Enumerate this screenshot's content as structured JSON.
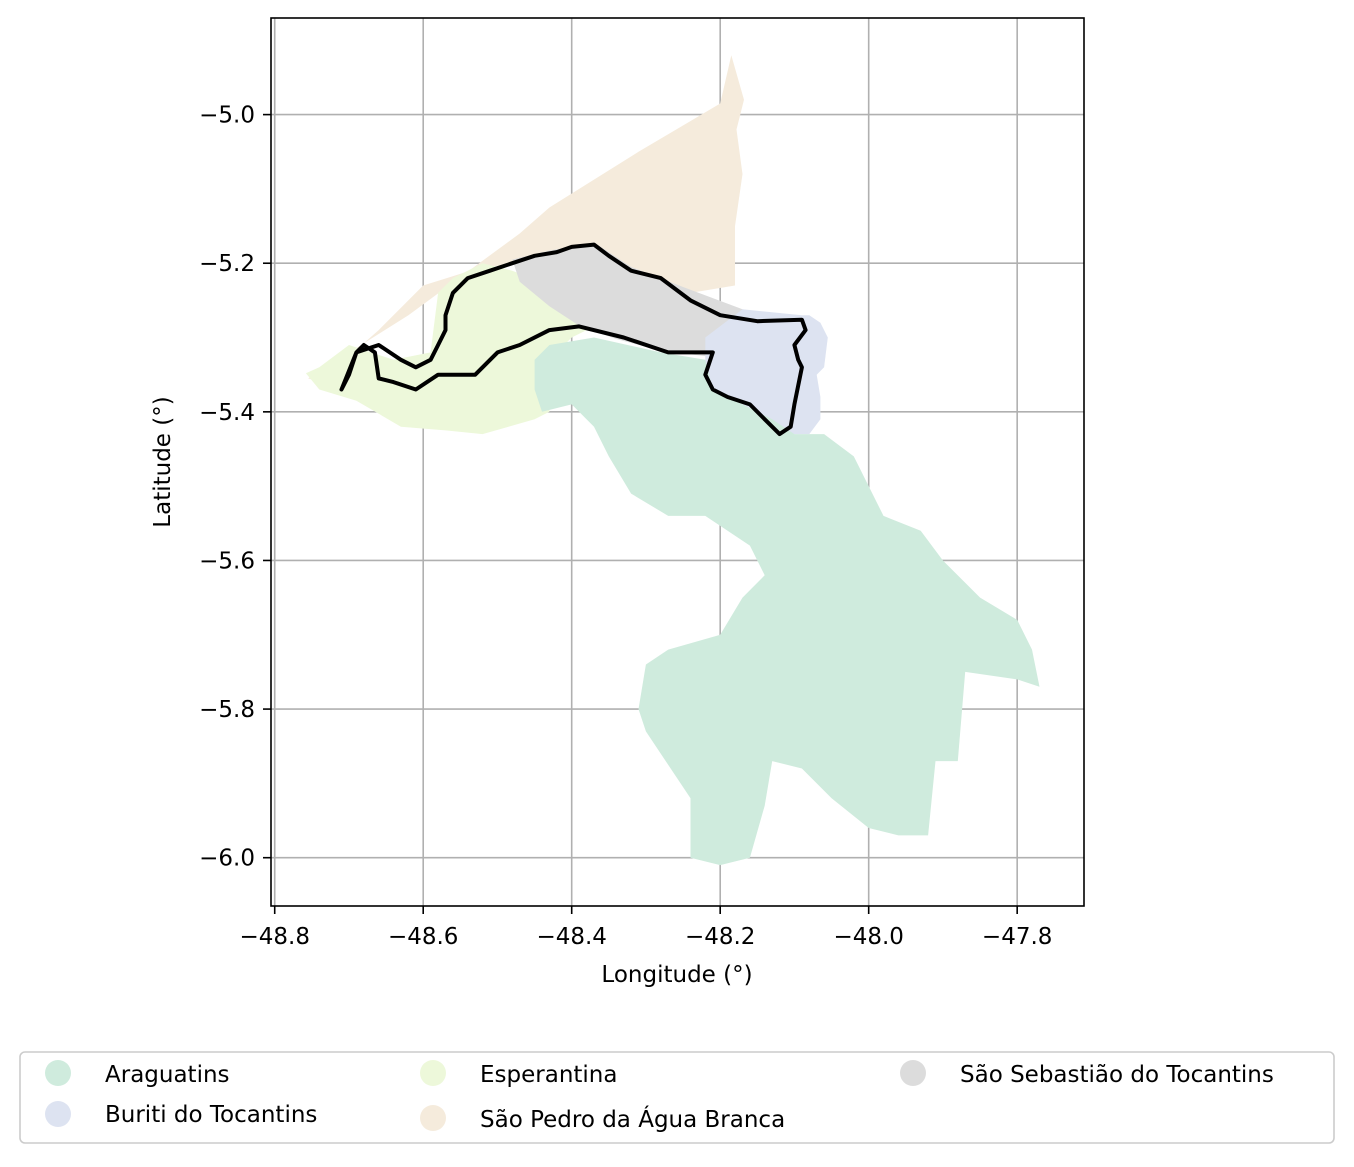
{
  "chart_data": {
    "type": "map",
    "xlabel": "Longitude (°)",
    "ylabel": "Latitude (°)",
    "xlim": [
      -48.805,
      -47.71
    ],
    "ylim": [
      -6.065,
      -4.87
    ],
    "x_ticks": [
      -48.8,
      -48.6,
      -48.4,
      -48.2,
      -48.0,
      -47.8
    ],
    "x_tick_labels": [
      "−48.8",
      "−48.6",
      "−48.4",
      "−48.2",
      "−48.0",
      "−47.8"
    ],
    "y_ticks": [
      -5.0,
      -5.2,
      -5.4,
      -5.6,
      -5.8,
      -6.0
    ],
    "y_tick_labels": [
      "−5.0",
      "−5.2",
      "−5.4",
      "−5.6",
      "−5.8",
      "−6.0"
    ],
    "grid": true,
    "legend_placement": "bottom-center, outside plot",
    "regions": [
      {
        "name": "São Pedro da Água Branca",
        "color": "#f5ebdc",
        "polygon": [
          [
            -48.755,
            -5.355
          ],
          [
            -48.62,
            -5.27
          ],
          [
            -48.47,
            -5.16
          ],
          [
            -48.43,
            -5.125
          ],
          [
            -48.31,
            -5.05
          ],
          [
            -48.2,
            -4.985
          ],
          [
            -48.185,
            -4.92
          ],
          [
            -48.168,
            -4.98
          ],
          [
            -48.178,
            -5.02
          ],
          [
            -48.17,
            -5.08
          ],
          [
            -48.18,
            -5.15
          ],
          [
            -48.18,
            -5.23
          ],
          [
            -48.24,
            -5.24
          ],
          [
            -48.35,
            -5.22
          ],
          [
            -48.45,
            -5.2
          ],
          [
            -48.52,
            -5.205
          ],
          [
            -48.6,
            -5.23
          ],
          [
            -48.66,
            -5.29
          ],
          [
            -48.74,
            -5.36
          ]
        ]
      },
      {
        "name": "Esperantina",
        "color": "#edf8da",
        "polygon": [
          [
            -48.758,
            -5.348
          ],
          [
            -48.74,
            -5.37
          ],
          [
            -48.69,
            -5.385
          ],
          [
            -48.63,
            -5.42
          ],
          [
            -48.57,
            -5.425
          ],
          [
            -48.52,
            -5.43
          ],
          [
            -48.45,
            -5.41
          ],
          [
            -48.43,
            -5.4
          ],
          [
            -48.43,
            -5.33
          ],
          [
            -48.4,
            -5.3
          ],
          [
            -48.36,
            -5.28
          ],
          [
            -48.43,
            -5.23
          ],
          [
            -48.48,
            -5.21
          ],
          [
            -48.52,
            -5.2
          ],
          [
            -48.56,
            -5.22
          ],
          [
            -48.58,
            -5.24
          ],
          [
            -48.59,
            -5.32
          ],
          [
            -48.64,
            -5.33
          ],
          [
            -48.7,
            -5.31
          ],
          [
            -48.74,
            -5.34
          ]
        ]
      },
      {
        "name": "São Sebastião do Tocantins",
        "color": "#dcdcdc",
        "polygon": [
          [
            -48.48,
            -5.195
          ],
          [
            -48.43,
            -5.183
          ],
          [
            -48.37,
            -5.172
          ],
          [
            -48.32,
            -5.205
          ],
          [
            -48.25,
            -5.232
          ],
          [
            -48.17,
            -5.262
          ],
          [
            -48.09,
            -5.278
          ],
          [
            -48.13,
            -5.285
          ],
          [
            -48.18,
            -5.297
          ],
          [
            -48.22,
            -5.325
          ],
          [
            -48.28,
            -5.318
          ],
          [
            -48.34,
            -5.302
          ],
          [
            -48.39,
            -5.284
          ],
          [
            -48.43,
            -5.258
          ],
          [
            -48.47,
            -5.225
          ]
        ]
      },
      {
        "name": "Buriti do Tocantins",
        "color": "#dde3f1",
        "polygon": [
          [
            -48.22,
            -5.3
          ],
          [
            -48.17,
            -5.262
          ],
          [
            -48.09,
            -5.27
          ],
          [
            -48.08,
            -5.27
          ],
          [
            -48.065,
            -5.28
          ],
          [
            -48.055,
            -5.3
          ],
          [
            -48.06,
            -5.34
          ],
          [
            -48.07,
            -5.35
          ],
          [
            -48.065,
            -5.38
          ],
          [
            -48.065,
            -5.41
          ],
          [
            -48.08,
            -5.43
          ],
          [
            -48.1,
            -5.43
          ],
          [
            -48.14,
            -5.42
          ],
          [
            -48.17,
            -5.39
          ],
          [
            -48.21,
            -5.38
          ],
          [
            -48.22,
            -5.34
          ]
        ]
      },
      {
        "name": "Araguatins",
        "color": "#cfebdd",
        "polygon": [
          [
            -48.45,
            -5.33
          ],
          [
            -48.43,
            -5.31
          ],
          [
            -48.37,
            -5.3
          ],
          [
            -48.28,
            -5.32
          ],
          [
            -48.22,
            -5.33
          ],
          [
            -48.21,
            -5.37
          ],
          [
            -48.17,
            -5.39
          ],
          [
            -48.13,
            -5.41
          ],
          [
            -48.1,
            -5.43
          ],
          [
            -48.06,
            -5.43
          ],
          [
            -48.02,
            -5.46
          ],
          [
            -48.0,
            -5.5
          ],
          [
            -47.98,
            -5.54
          ],
          [
            -47.93,
            -5.56
          ],
          [
            -47.9,
            -5.6
          ],
          [
            -47.85,
            -5.65
          ],
          [
            -47.8,
            -5.68
          ],
          [
            -47.78,
            -5.72
          ],
          [
            -47.77,
            -5.77
          ],
          [
            -47.8,
            -5.76
          ],
          [
            -47.87,
            -5.75
          ],
          [
            -47.88,
            -5.87
          ],
          [
            -47.91,
            -5.87
          ],
          [
            -47.92,
            -5.97
          ],
          [
            -47.96,
            -5.97
          ],
          [
            -48.0,
            -5.96
          ],
          [
            -48.05,
            -5.92
          ],
          [
            -48.09,
            -5.88
          ],
          [
            -48.13,
            -5.87
          ],
          [
            -48.14,
            -5.93
          ],
          [
            -48.16,
            -6.0
          ],
          [
            -48.2,
            -6.01
          ],
          [
            -48.24,
            -6.0
          ],
          [
            -48.24,
            -5.92
          ],
          [
            -48.28,
            -5.86
          ],
          [
            -48.3,
            -5.83
          ],
          [
            -48.31,
            -5.8
          ],
          [
            -48.3,
            -5.74
          ],
          [
            -48.27,
            -5.72
          ],
          [
            -48.2,
            -5.7
          ],
          [
            -48.17,
            -5.65
          ],
          [
            -48.14,
            -5.62
          ],
          [
            -48.16,
            -5.58
          ],
          [
            -48.22,
            -5.54
          ],
          [
            -48.27,
            -5.54
          ],
          [
            -48.32,
            -5.51
          ],
          [
            -48.35,
            -5.46
          ],
          [
            -48.37,
            -5.42
          ],
          [
            -48.4,
            -5.39
          ],
          [
            -48.44,
            -5.4
          ],
          [
            -48.45,
            -5.37
          ]
        ]
      }
    ],
    "outline": {
      "color": "#000000",
      "polygon": [
        [
          -48.71,
          -5.37
        ],
        [
          -48.7,
          -5.35
        ],
        [
          -48.69,
          -5.32
        ],
        [
          -48.66,
          -5.31
        ],
        [
          -48.63,
          -5.33
        ],
        [
          -48.61,
          -5.34
        ],
        [
          -48.59,
          -5.33
        ],
        [
          -48.58,
          -5.31
        ],
        [
          -48.57,
          -5.29
        ],
        [
          -48.57,
          -5.27
        ],
        [
          -48.56,
          -5.24
        ],
        [
          -48.54,
          -5.22
        ],
        [
          -48.51,
          -5.21
        ],
        [
          -48.48,
          -5.2
        ],
        [
          -48.45,
          -5.19
        ],
        [
          -48.42,
          -5.185
        ],
        [
          -48.4,
          -5.178
        ],
        [
          -48.37,
          -5.175
        ],
        [
          -48.35,
          -5.19
        ],
        [
          -48.32,
          -5.21
        ],
        [
          -48.28,
          -5.22
        ],
        [
          -48.24,
          -5.25
        ],
        [
          -48.2,
          -5.27
        ],
        [
          -48.15,
          -5.278
        ],
        [
          -48.09,
          -5.276
        ],
        [
          -48.085,
          -5.29
        ],
        [
          -48.1,
          -5.31
        ],
        [
          -48.095,
          -5.33
        ],
        [
          -48.09,
          -5.34
        ],
        [
          -48.1,
          -5.39
        ],
        [
          -48.105,
          -5.42
        ],
        [
          -48.12,
          -5.43
        ],
        [
          -48.14,
          -5.41
        ],
        [
          -48.16,
          -5.39
        ],
        [
          -48.19,
          -5.38
        ],
        [
          -48.21,
          -5.37
        ],
        [
          -48.22,
          -5.35
        ],
        [
          -48.21,
          -5.32
        ],
        [
          -48.27,
          -5.32
        ],
        [
          -48.33,
          -5.3
        ],
        [
          -48.39,
          -5.285
        ],
        [
          -48.43,
          -5.29
        ],
        [
          -48.47,
          -5.31
        ],
        [
          -48.5,
          -5.32
        ],
        [
          -48.53,
          -5.35
        ],
        [
          -48.58,
          -5.35
        ],
        [
          -48.61,
          -5.37
        ],
        [
          -48.64,
          -5.36
        ],
        [
          -48.66,
          -5.355
        ],
        [
          -48.665,
          -5.32
        ],
        [
          -48.68,
          -5.31
        ],
        [
          -48.69,
          -5.32
        ],
        [
          -48.71,
          -5.37
        ]
      ]
    }
  },
  "legend": {
    "items": [
      {
        "label": "Araguatins",
        "color": "#cfebdd"
      },
      {
        "label": "Buriti do Tocantins",
        "color": "#dde3f1"
      },
      {
        "label": "Esperantina",
        "color": "#edf8da"
      },
      {
        "label": "São Pedro da Água Branca",
        "color": "#f5ebdc"
      },
      {
        "label": "São Sebastião do Tocantins",
        "color": "#dcdcdc"
      }
    ]
  }
}
